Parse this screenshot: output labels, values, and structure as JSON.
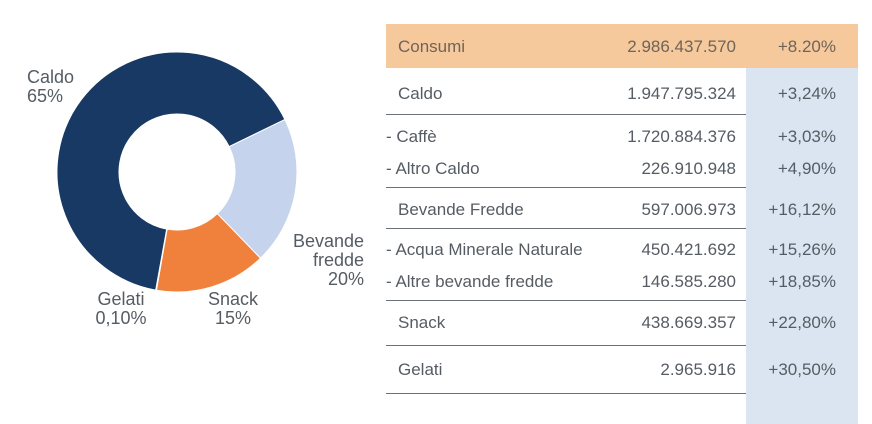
{
  "chart_data": {
    "type": "pie",
    "variant": "donut",
    "slices": [
      {
        "name": "Caldo",
        "label": "65%",
        "value": 65.0,
        "color": "#173963"
      },
      {
        "name": "Bevande fredde",
        "label": "20%",
        "value": 20.0,
        "color": "#c5d4ec"
      },
      {
        "name": "Snack",
        "label": "15%",
        "value": 15.0,
        "color": "#f0813c"
      },
      {
        "name": "Gelati",
        "label": "0,10%",
        "value": 0.1,
        "color": "#173963"
      }
    ],
    "labels": {
      "caldo": [
        "Caldo",
        "65%"
      ],
      "bevande": [
        "Bevande",
        "fredde",
        "20%"
      ],
      "snack": [
        "Snack",
        "15%"
      ],
      "gelati": [
        "Gelati",
        "0,10%"
      ]
    }
  },
  "table": {
    "header": {
      "name": "Consumi",
      "value": "2.986.437.570",
      "change": "+8.20%"
    },
    "rows": [
      {
        "name": "Caldo",
        "value": "1.947.795.324",
        "change": "+3,24%"
      },
      {
        "name": "- Caffè",
        "value": "1.720.884.376",
        "change": "+3,03%"
      },
      {
        "name": "- Altro Caldo",
        "value": "226.910.948",
        "change": "+4,90%"
      },
      {
        "name": "Bevande Fredde",
        "value": "597.006.973",
        "change": "+16,12%"
      },
      {
        "name": "- Acqua Minerale Naturale",
        "value": "450.421.692",
        "change": "+15,26%"
      },
      {
        "name": "- Altre bevande fredde",
        "value": "146.585.280",
        "change": "+18,85%"
      },
      {
        "name": "Snack",
        "value": "438.669.357",
        "change": "+22,80%"
      },
      {
        "name": "Gelati",
        "value": "2.965.916",
        "change": "+30,50%"
      }
    ]
  },
  "colors": {
    "header_bg": "#f6c99c",
    "change_column_bg": "#dbe5f2",
    "rule": "#6d727a"
  }
}
